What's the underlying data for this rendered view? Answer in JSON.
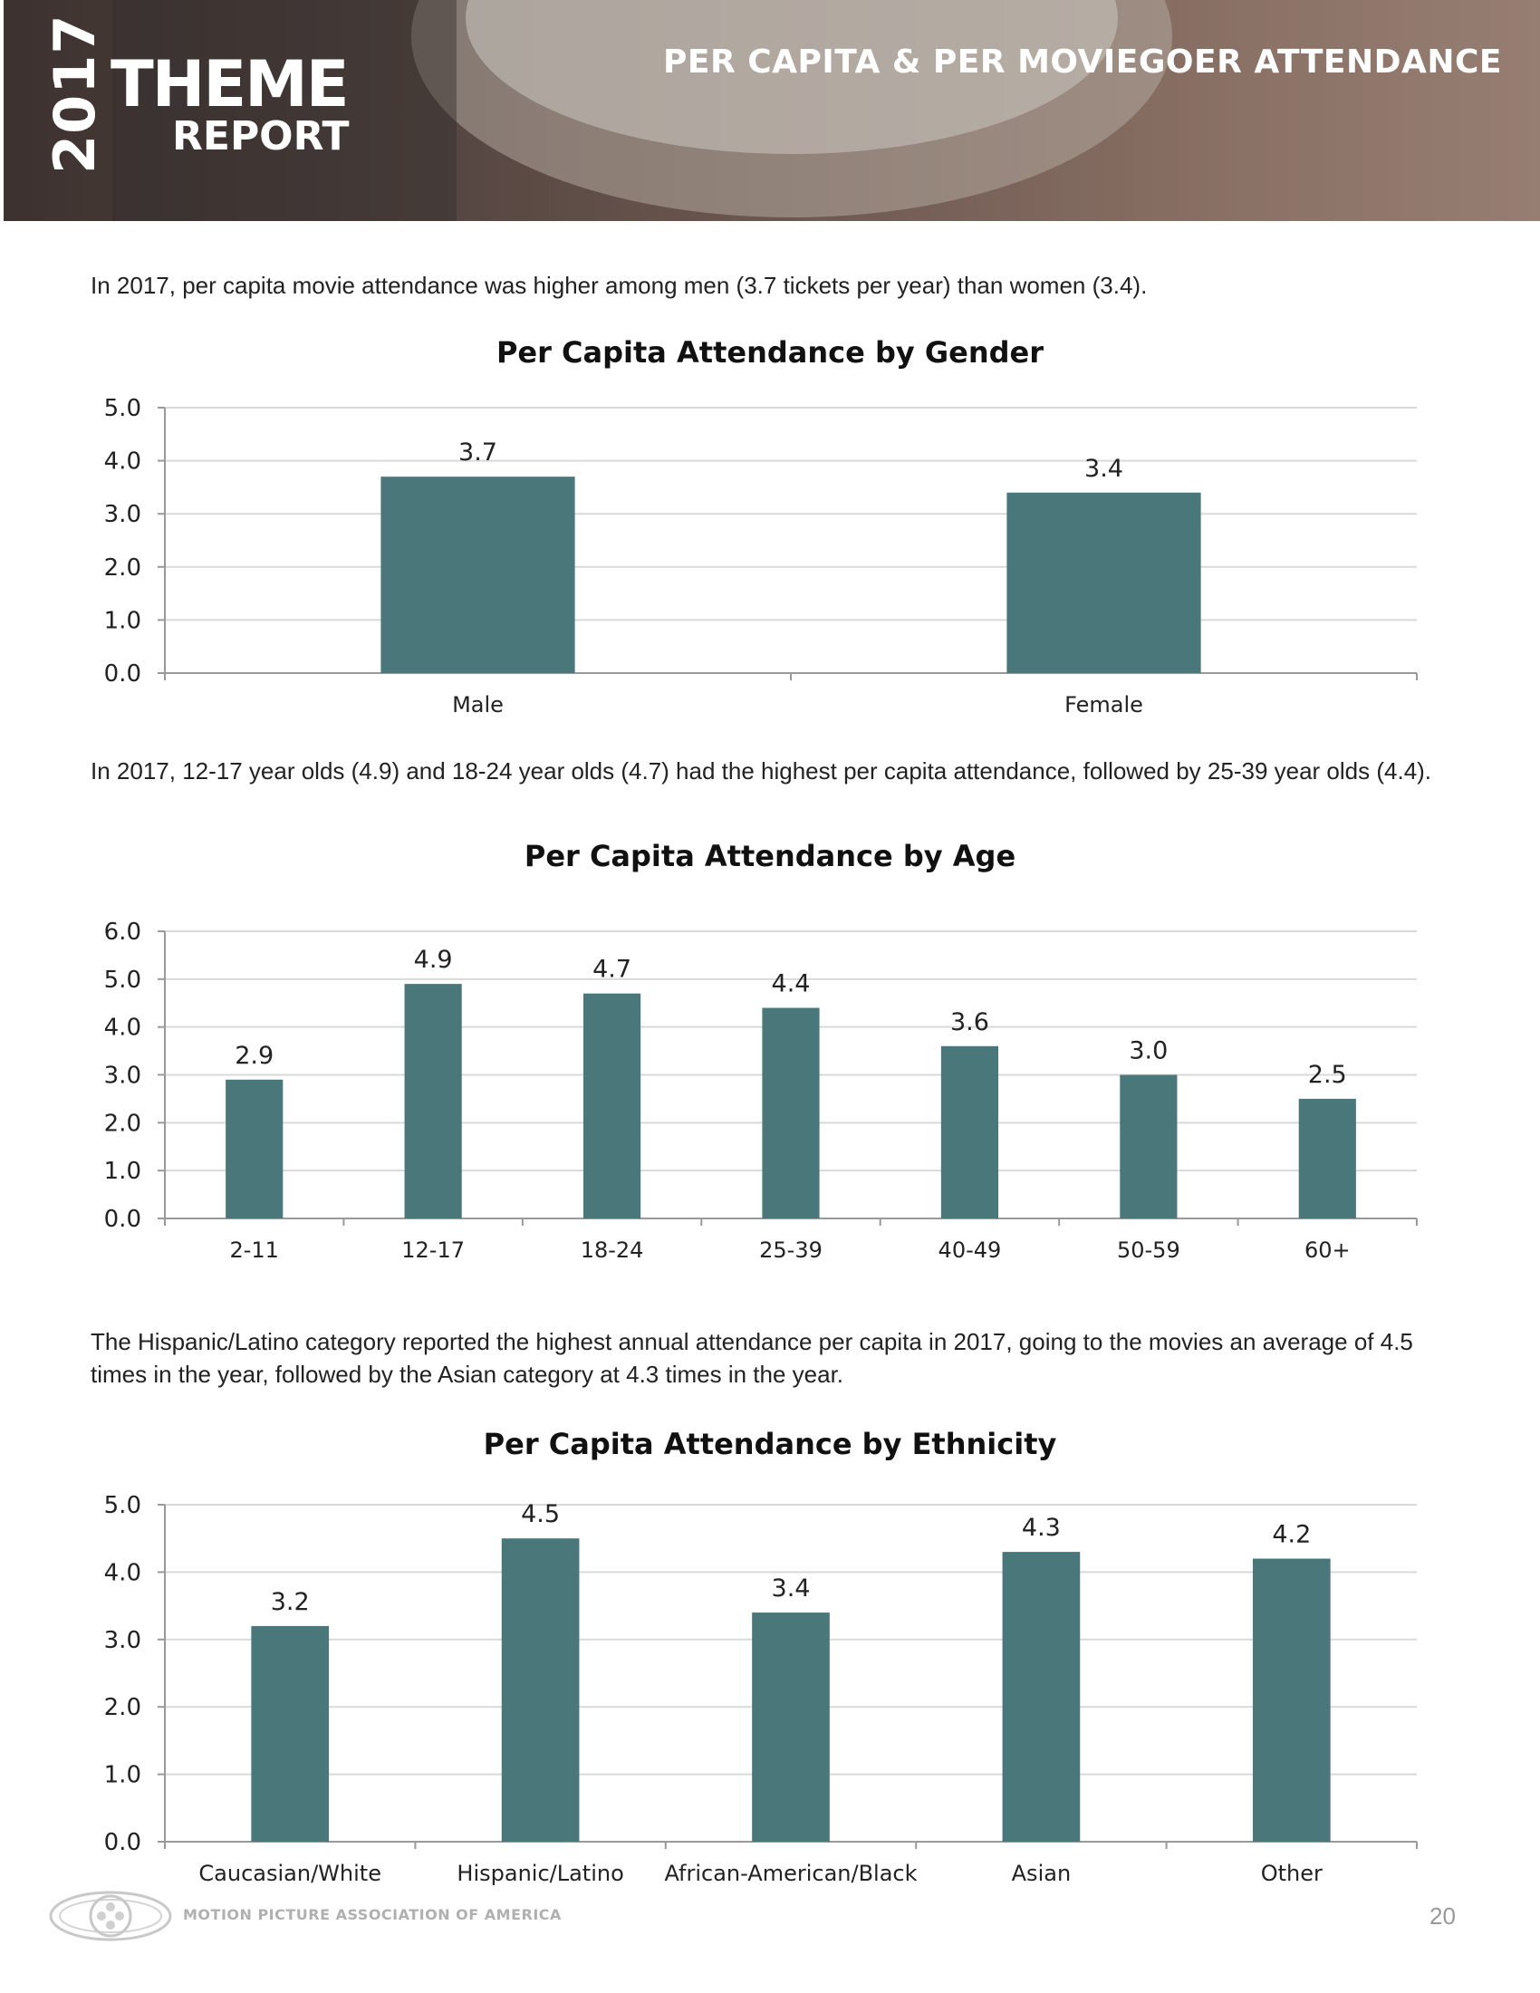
{
  "header": {
    "year": "2017",
    "brand_line1": "THEME",
    "brand_line2": "REPORT",
    "section_title": "PER CAPITA & PER MOVIEGOER ATTENDANCE"
  },
  "paragraphs": {
    "gender": "In 2017, per capita movie attendance was higher among men (3.7 tickets per year) than women (3.4).",
    "age": "In 2017, 12-17 year olds (4.9) and 18-24 year olds (4.7) had the highest per capita attendance, followed by 25-39 year olds (4.4).",
    "ethnicity": "The Hispanic/Latino category reported the highest annual attendance per capita in 2017, going to the movies an average of 4.5 times in the year, followed by the Asian category at 4.3 times in the year."
  },
  "colors": {
    "bar": "#4a777a",
    "grid": "#d9d9d9",
    "axis": "#999999"
  },
  "chart_data": [
    {
      "type": "bar",
      "title": "Per Capita Attendance by Gender",
      "categories": [
        "Male",
        "Female"
      ],
      "values": [
        3.7,
        3.4
      ],
      "value_labels": [
        "3.7",
        "3.4"
      ],
      "ylim": [
        0,
        5
      ],
      "yticks": [
        "0.0",
        "1.0",
        "2.0",
        "3.0",
        "4.0",
        "5.0"
      ],
      "xlabel": "",
      "ylabel": "",
      "grid": true
    },
    {
      "type": "bar",
      "title": "Per Capita Attendance by Age",
      "categories": [
        "2-11",
        "12-17",
        "18-24",
        "25-39",
        "40-49",
        "50-59",
        "60+"
      ],
      "values": [
        2.9,
        4.9,
        4.7,
        4.4,
        3.6,
        3.0,
        2.5
      ],
      "value_labels": [
        "2.9",
        "4.9",
        "4.7",
        "4.4",
        "3.6",
        "3.0",
        "2.5"
      ],
      "ylim": [
        0,
        6
      ],
      "yticks": [
        "0.0",
        "1.0",
        "2.0",
        "3.0",
        "4.0",
        "5.0",
        "6.0"
      ],
      "xlabel": "",
      "ylabel": "",
      "grid": true
    },
    {
      "type": "bar",
      "title": "Per Capita Attendance by Ethnicity",
      "categories": [
        "Caucasian/White",
        "Hispanic/Latino",
        "African-American/Black",
        "Asian",
        "Other"
      ],
      "values": [
        3.2,
        4.5,
        3.4,
        4.3,
        4.2
      ],
      "value_labels": [
        "3.2",
        "4.5",
        "3.4",
        "4.3",
        "4.2"
      ],
      "ylim": [
        0,
        5
      ],
      "yticks": [
        "0.0",
        "1.0",
        "2.0",
        "3.0",
        "4.0",
        "5.0"
      ],
      "xlabel": "",
      "ylabel": "",
      "grid": true
    }
  ],
  "footer": {
    "organization": "MOTION PICTURE ASSOCIATION OF AMERICA",
    "page_number": "20"
  }
}
